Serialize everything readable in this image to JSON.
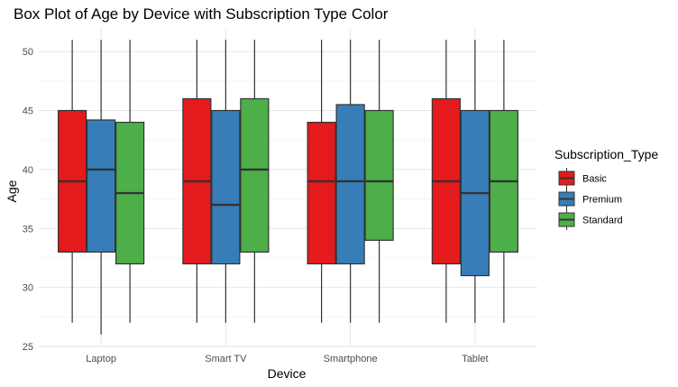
{
  "chart_data": {
    "type": "boxplot",
    "title": "Box Plot of Age by Device with Subscription Type Color",
    "xlabel": "Device",
    "ylabel": "Age",
    "ylim": [
      25,
      52
    ],
    "y_ticks": [
      25,
      30,
      35,
      40,
      45,
      50
    ],
    "grid": true,
    "legend": {
      "title": "Subscription_Type",
      "placement": "right"
    },
    "categories": [
      "Laptop",
      "Smart TV",
      "Smartphone",
      "Tablet"
    ],
    "series": [
      {
        "name": "Basic",
        "color": "#E41A1C",
        "boxes": [
          {
            "min": 27,
            "q1": 33,
            "median": 39,
            "q3": 45,
            "max": 51
          },
          {
            "min": 27,
            "q1": 32,
            "median": 39,
            "q3": 46,
            "max": 51
          },
          {
            "min": 27,
            "q1": 32,
            "median": 39,
            "q3": 44,
            "max": 51
          },
          {
            "min": 27,
            "q1": 32,
            "median": 39,
            "q3": 46,
            "max": 51
          }
        ]
      },
      {
        "name": "Premium",
        "color": "#377EB8",
        "boxes": [
          {
            "min": 26,
            "q1": 33,
            "median": 40,
            "q3": 44.2,
            "max": 51
          },
          {
            "min": 27,
            "q1": 32,
            "median": 37,
            "q3": 45,
            "max": 51
          },
          {
            "min": 27,
            "q1": 32,
            "median": 39,
            "q3": 45.5,
            "max": 51
          },
          {
            "min": 27,
            "q1": 31,
            "median": 38,
            "q3": 45,
            "max": 51
          }
        ]
      },
      {
        "name": "Standard",
        "color": "#4DAF4A",
        "boxes": [
          {
            "min": 27,
            "q1": 32,
            "median": 38,
            "q3": 44,
            "max": 51
          },
          {
            "min": 27,
            "q1": 33,
            "median": 40,
            "q3": 46,
            "max": 51
          },
          {
            "min": 27,
            "q1": 34,
            "median": 39,
            "q3": 45,
            "max": 51
          },
          {
            "min": 27,
            "q1": 33,
            "median": 39,
            "q3": 45,
            "max": 51
          }
        ]
      }
    ]
  }
}
